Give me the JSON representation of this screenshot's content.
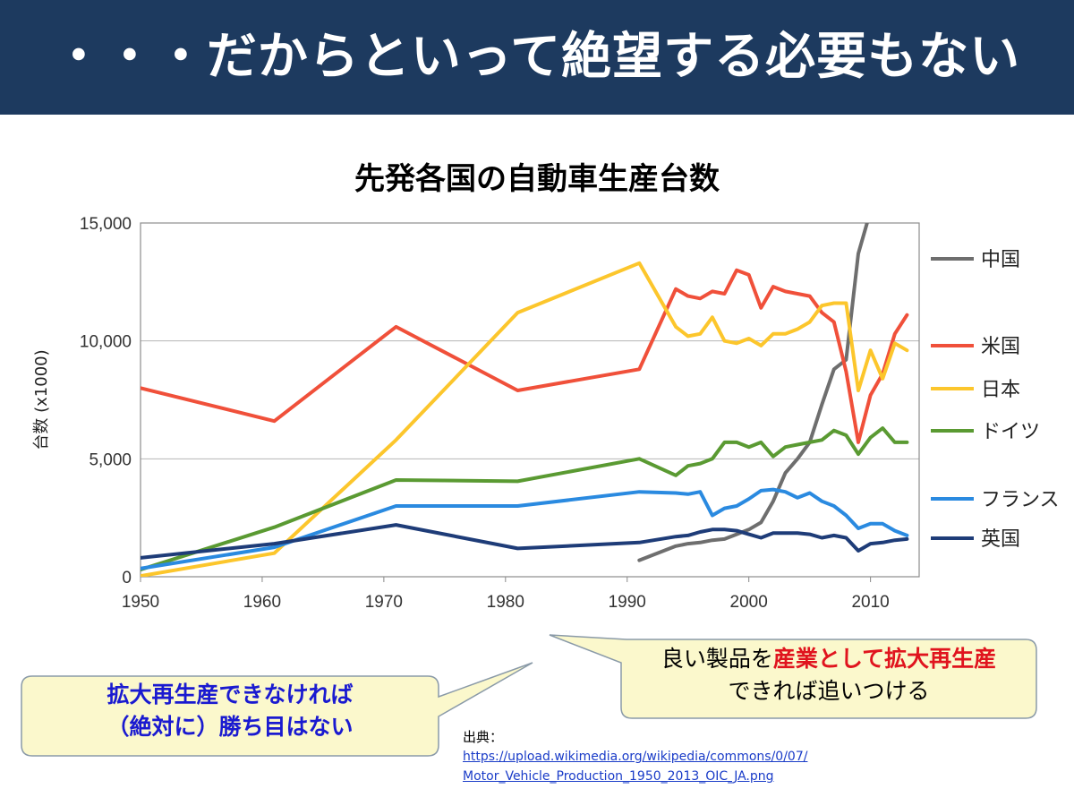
{
  "slide": {
    "title": "・・・だからといって絶望する必要もない"
  },
  "callouts": {
    "left_line1": "拡大再生産できなければ",
    "left_line2": "（絶対に）勝ち目はない",
    "right_line1_pre": "良い製品を",
    "right_line1_highlight": "産業として拡大再生産",
    "right_line2": "できれば追いつける"
  },
  "source": {
    "label": "出典：",
    "url_line1": "https://upload.wikimedia.org/wikipedia/commons/0/07/",
    "url_line2": "Motor_Vehicle_Production_1950_2013_OIC_JA.png"
  },
  "chart_data": {
    "type": "line",
    "title": "先発各国の自動車生産台数",
    "xlabel": "",
    "ylabel": "台数 (x1000)",
    "xlim": [
      1950,
      2014
    ],
    "ylim": [
      0,
      15000
    ],
    "x_ticks": [
      1950,
      1960,
      1970,
      1980,
      1990,
      2000,
      2010
    ],
    "y_ticks": [
      0,
      5000,
      10000,
      15000
    ],
    "y_tick_labels": [
      "0",
      "5,000",
      "10,000",
      "15,000"
    ],
    "grid": "horizontal",
    "legend_position": "right",
    "series": [
      {
        "name": "中国",
        "color": "#6e6e6e",
        "points": [
          [
            1991,
            700
          ],
          [
            1994,
            1300
          ],
          [
            1995,
            1400
          ],
          [
            1996,
            1450
          ],
          [
            1997,
            1550
          ],
          [
            1998,
            1600
          ],
          [
            1999,
            1800
          ],
          [
            2000,
            2000
          ],
          [
            2001,
            2300
          ],
          [
            2002,
            3200
          ],
          [
            2003,
            4400
          ],
          [
            2004,
            5000
          ],
          [
            2005,
            5700
          ],
          [
            2006,
            7300
          ],
          [
            2007,
            8800
          ],
          [
            2008,
            9200
          ],
          [
            2009,
            13700
          ],
          [
            2010,
            15500
          ]
        ]
      },
      {
        "name": "米国",
        "color": "#f0503a",
        "points": [
          [
            1950,
            8000
          ],
          [
            1961,
            6600
          ],
          [
            1971,
            10600
          ],
          [
            1981,
            7900
          ],
          [
            1991,
            8800
          ],
          [
            1994,
            12200
          ],
          [
            1995,
            11900
          ],
          [
            1996,
            11800
          ],
          [
            1997,
            12100
          ],
          [
            1998,
            12000
          ],
          [
            1999,
            13000
          ],
          [
            2000,
            12800
          ],
          [
            2001,
            11400
          ],
          [
            2002,
            12300
          ],
          [
            2003,
            12100
          ],
          [
            2004,
            12000
          ],
          [
            2005,
            11900
          ],
          [
            2006,
            11200
          ],
          [
            2007,
            10800
          ],
          [
            2008,
            8700
          ],
          [
            2009,
            5700
          ],
          [
            2010,
            7700
          ],
          [
            2011,
            8600
          ],
          [
            2012,
            10300
          ],
          [
            2013,
            11100
          ]
        ]
      },
      {
        "name": "日本",
        "color": "#fcc62c",
        "points": [
          [
            1950,
            30
          ],
          [
            1961,
            1000
          ],
          [
            1971,
            5800
          ],
          [
            1981,
            11200
          ],
          [
            1991,
            13300
          ],
          [
            1994,
            10600
          ],
          [
            1995,
            10200
          ],
          [
            1996,
            10300
          ],
          [
            1997,
            11000
          ],
          [
            1998,
            10000
          ],
          [
            1999,
            9900
          ],
          [
            2000,
            10100
          ],
          [
            2001,
            9800
          ],
          [
            2002,
            10300
          ],
          [
            2003,
            10300
          ],
          [
            2004,
            10500
          ],
          [
            2005,
            10800
          ],
          [
            2006,
            11500
          ],
          [
            2007,
            11600
          ],
          [
            2008,
            11600
          ],
          [
            2009,
            7900
          ],
          [
            2010,
            9600
          ],
          [
            2011,
            8400
          ],
          [
            2012,
            9900
          ],
          [
            2013,
            9600
          ]
        ]
      },
      {
        "name": "ドイツ",
        "color": "#5a9a32",
        "points": [
          [
            1950,
            300
          ],
          [
            1961,
            2100
          ],
          [
            1971,
            4100
          ],
          [
            1981,
            4050
          ],
          [
            1991,
            5000
          ],
          [
            1994,
            4300
          ],
          [
            1995,
            4700
          ],
          [
            1996,
            4800
          ],
          [
            1997,
            5000
          ],
          [
            1998,
            5700
          ],
          [
            1999,
            5700
          ],
          [
            2000,
            5500
          ],
          [
            2001,
            5700
          ],
          [
            2002,
            5100
          ],
          [
            2003,
            5500
          ],
          [
            2004,
            5600
          ],
          [
            2005,
            5700
          ],
          [
            2006,
            5800
          ],
          [
            2007,
            6200
          ],
          [
            2008,
            6000
          ],
          [
            2009,
            5200
          ],
          [
            2010,
            5900
          ],
          [
            2011,
            6300
          ],
          [
            2012,
            5700
          ],
          [
            2013,
            5700
          ]
        ]
      },
      {
        "name": "フランス",
        "color": "#2a8ae0",
        "points": [
          [
            1950,
            350
          ],
          [
            1961,
            1250
          ],
          [
            1971,
            3000
          ],
          [
            1981,
            3000
          ],
          [
            1991,
            3600
          ],
          [
            1994,
            3550
          ],
          [
            1995,
            3500
          ],
          [
            1996,
            3600
          ],
          [
            1997,
            2600
          ],
          [
            1998,
            2900
          ],
          [
            1999,
            3000
          ],
          [
            2000,
            3300
          ],
          [
            2001,
            3650
          ],
          [
            2002,
            3700
          ],
          [
            2003,
            3600
          ],
          [
            2004,
            3350
          ],
          [
            2005,
            3550
          ],
          [
            2006,
            3200
          ],
          [
            2007,
            3000
          ],
          [
            2008,
            2600
          ],
          [
            2009,
            2050
          ],
          [
            2010,
            2250
          ],
          [
            2011,
            2250
          ],
          [
            2012,
            1950
          ],
          [
            2013,
            1750
          ]
        ]
      },
      {
        "name": "英国",
        "color": "#1e3c78",
        "points": [
          [
            1950,
            800
          ],
          [
            1961,
            1400
          ],
          [
            1971,
            2200
          ],
          [
            1981,
            1200
          ],
          [
            1991,
            1450
          ],
          [
            1994,
            1700
          ],
          [
            1995,
            1750
          ],
          [
            1996,
            1900
          ],
          [
            1997,
            2000
          ],
          [
            1998,
            2000
          ],
          [
            1999,
            1950
          ],
          [
            2000,
            1800
          ],
          [
            2001,
            1650
          ],
          [
            2002,
            1850
          ],
          [
            2003,
            1850
          ],
          [
            2004,
            1850
          ],
          [
            2005,
            1800
          ],
          [
            2006,
            1650
          ],
          [
            2007,
            1750
          ],
          [
            2008,
            1650
          ],
          [
            2009,
            1100
          ],
          [
            2010,
            1400
          ],
          [
            2011,
            1450
          ],
          [
            2012,
            1550
          ],
          [
            2013,
            1600
          ]
        ]
      }
    ]
  }
}
